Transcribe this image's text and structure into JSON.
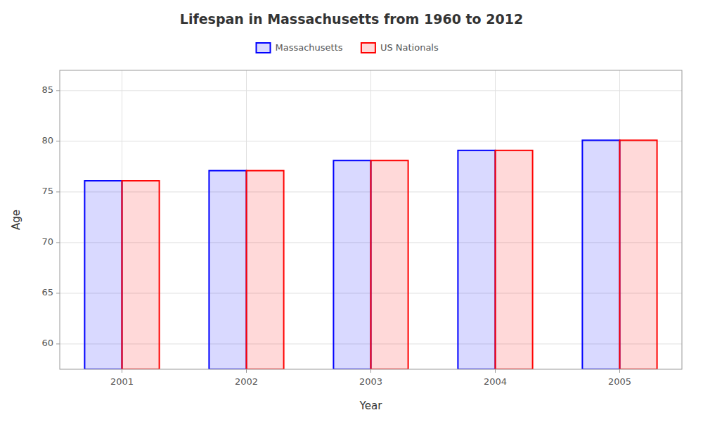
{
  "chart_data": {
    "type": "bar",
    "title": "Lifespan in Massachusetts from 1960 to 2012",
    "x_label": "Year",
    "y_label": "Age",
    "categories": [
      "2001",
      "2002",
      "2003",
      "2004",
      "2005"
    ],
    "series": [
      {
        "name": "Massachusetts",
        "color": "#0000ff",
        "values": [
          76.1,
          77.1,
          78.1,
          79.1,
          80.1
        ]
      },
      {
        "name": "US Nationals",
        "color": "#ff0000",
        "values": [
          76.1,
          77.1,
          78.1,
          79.1,
          80.1
        ]
      }
    ],
    "ylim": [
      57.5,
      87
    ],
    "yticks": [
      60,
      65,
      70,
      75,
      80,
      85
    ],
    "grid": true,
    "legend": "top"
  }
}
